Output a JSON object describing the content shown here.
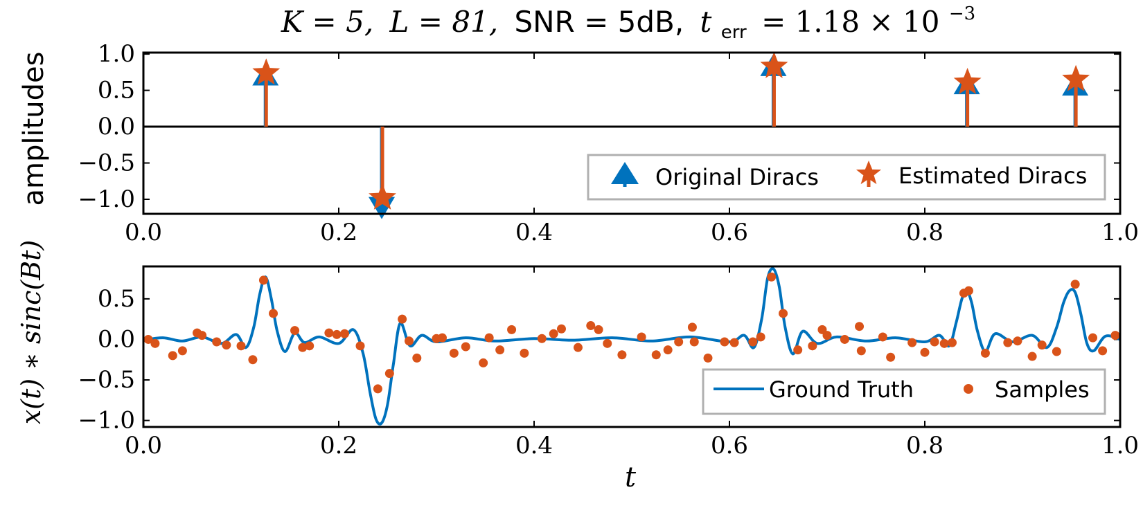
{
  "title": {
    "k_part": "K = 5,",
    "l_part": "L = 81,",
    "snr_part": "SNR = 5dB,",
    "t": "t",
    "err_sub": "err",
    "value": "= 1.18 × 10",
    "exponent": "−3"
  },
  "chart_data": [
    {
      "type": "stem",
      "ylabel": "amplitudes",
      "xlim": [
        0.0,
        1.0
      ],
      "ylim": [
        -1.2,
        1.02
      ],
      "xticks": [
        0.0,
        0.2,
        0.4,
        0.6,
        0.8,
        1.0
      ],
      "xtick_labels": [
        "0.0",
        "0.2",
        "0.4",
        "0.6",
        "0.8",
        "1.0"
      ],
      "yticks": [
        1.0,
        0.5,
        0.0,
        -0.5,
        -1.0
      ],
      "ytick_labels": [
        "1.0",
        "0.5",
        "0.0",
        "−0.5",
        "−1.0"
      ],
      "grid": false,
      "legend_placement": "lower-right",
      "series": [
        {
          "name": "Original Diracs",
          "marker": "triangle",
          "color": "#0072bd",
          "x": [
            0.125,
            0.244,
            0.645,
            0.843,
            0.954
          ],
          "y": [
            0.72,
            -1.12,
            0.85,
            0.6,
            0.58
          ]
        },
        {
          "name": "Estimated Diracs",
          "marker": "star",
          "color": "#d95319",
          "x": [
            0.125,
            0.244,
            0.645,
            0.843,
            0.954
          ],
          "y": [
            0.74,
            -0.98,
            0.83,
            0.61,
            0.65
          ]
        }
      ]
    },
    {
      "type": "line+scatter",
      "ylabel": "x(t) ∗ sinc(Bt)",
      "xlabel": "t",
      "xlim": [
        0.0,
        1.0
      ],
      "ylim": [
        -1.08,
        0.9
      ],
      "xticks": [
        0.0,
        0.2,
        0.4,
        0.6,
        0.8,
        1.0
      ],
      "xtick_labels": [
        "0.0",
        "0.2",
        "0.4",
        "0.6",
        "0.8",
        "1.0"
      ],
      "yticks": [
        0.5,
        0.0,
        -0.5,
        -1.0
      ],
      "ytick_labels": [
        "0.5",
        "0.0",
        "−0.5",
        "−1.0"
      ],
      "grid": false,
      "legend_placement": "lower-right",
      "series": [
        {
          "name": "Ground Truth",
          "style": "line",
          "color": "#0072bd",
          "x": [
            0.0,
            0.02,
            0.04,
            0.06,
            0.08,
            0.095,
            0.105,
            0.113,
            0.119,
            0.125,
            0.131,
            0.137,
            0.145,
            0.155,
            0.165,
            0.18,
            0.2,
            0.215,
            0.225,
            0.232,
            0.238,
            0.244,
            0.25,
            0.256,
            0.263,
            0.273,
            0.285,
            0.3,
            0.33,
            0.36,
            0.4,
            0.44,
            0.48,
            0.52,
            0.56,
            0.6,
            0.615,
            0.625,
            0.633,
            0.639,
            0.645,
            0.651,
            0.657,
            0.665,
            0.675,
            0.69,
            0.71,
            0.74,
            0.77,
            0.8,
            0.815,
            0.825,
            0.832,
            0.838,
            0.843,
            0.848,
            0.854,
            0.862,
            0.872,
            0.89,
            0.91,
            0.925,
            0.935,
            0.942,
            0.948,
            0.954,
            0.96,
            0.966,
            0.973,
            0.985,
            1.0
          ],
          "y": [
            -0.01,
            0.02,
            -0.02,
            0.03,
            -0.05,
            0.06,
            -0.1,
            0.15,
            0.55,
            0.77,
            0.5,
            0.1,
            -0.15,
            0.08,
            -0.04,
            0.03,
            -0.05,
            0.12,
            -0.18,
            -0.65,
            -0.98,
            -1.03,
            -0.8,
            -0.3,
            0.2,
            -0.08,
            0.05,
            -0.03,
            0.02,
            -0.02,
            0.01,
            -0.01,
            0.02,
            -0.02,
            0.03,
            -0.03,
            0.05,
            -0.1,
            0.25,
            0.75,
            0.87,
            0.65,
            0.15,
            -0.18,
            0.1,
            -0.05,
            0.03,
            -0.02,
            0.02,
            -0.03,
            0.05,
            -0.08,
            0.2,
            0.5,
            0.6,
            0.45,
            0.1,
            -0.15,
            0.07,
            -0.03,
            0.05,
            -0.1,
            0.15,
            0.45,
            0.6,
            0.58,
            0.3,
            -0.05,
            -0.14,
            0.04,
            0.0
          ]
        },
        {
          "name": "Samples",
          "style": "scatter",
          "color": "#d95319",
          "x": [
            0.005,
            0.012,
            0.03,
            0.04,
            0.055,
            0.06,
            0.075,
            0.085,
            0.1,
            0.112,
            0.123,
            0.133,
            0.155,
            0.163,
            0.17,
            0.19,
            0.198,
            0.206,
            0.222,
            0.24,
            0.252,
            0.265,
            0.272,
            0.28,
            0.3,
            0.306,
            0.318,
            0.33,
            0.348,
            0.354,
            0.365,
            0.377,
            0.39,
            0.408,
            0.42,
            0.428,
            0.445,
            0.458,
            0.466,
            0.475,
            0.49,
            0.51,
            0.525,
            0.537,
            0.548,
            0.562,
            0.564,
            0.578,
            0.595,
            0.605,
            0.624,
            0.632,
            0.643,
            0.655,
            0.67,
            0.685,
            0.695,
            0.7,
            0.718,
            0.733,
            0.735,
            0.757,
            0.765,
            0.787,
            0.8,
            0.81,
            0.82,
            0.828,
            0.84,
            0.845,
            0.862,
            0.885,
            0.895,
            0.91,
            0.92,
            0.935,
            0.954,
            0.972,
            0.982,
            0.995
          ],
          "y": [
            0.0,
            -0.05,
            -0.2,
            -0.14,
            0.08,
            0.05,
            -0.03,
            -0.07,
            -0.08,
            -0.25,
            0.73,
            0.32,
            0.11,
            -0.1,
            -0.08,
            0.08,
            0.06,
            0.07,
            -0.08,
            -0.61,
            -0.42,
            0.25,
            -0.02,
            -0.23,
            0.01,
            0.02,
            -0.17,
            -0.09,
            -0.29,
            0.02,
            -0.13,
            0.12,
            -0.17,
            0.01,
            0.07,
            0.13,
            -0.1,
            0.17,
            0.12,
            -0.05,
            -0.19,
            0.03,
            -0.19,
            -0.13,
            -0.03,
            0.15,
            -0.03,
            -0.23,
            -0.03,
            -0.04,
            -0.03,
            0.03,
            0.77,
            0.32,
            -0.13,
            -0.08,
            0.12,
            0.05,
            0.0,
            0.16,
            -0.14,
            0.03,
            -0.22,
            -0.04,
            -0.16,
            -0.03,
            -0.05,
            -0.04,
            0.57,
            0.6,
            -0.17,
            -0.04,
            -0.02,
            -0.21,
            -0.07,
            -0.15,
            0.68,
            0.02,
            -0.14,
            0.05
          ]
        }
      ]
    }
  ]
}
